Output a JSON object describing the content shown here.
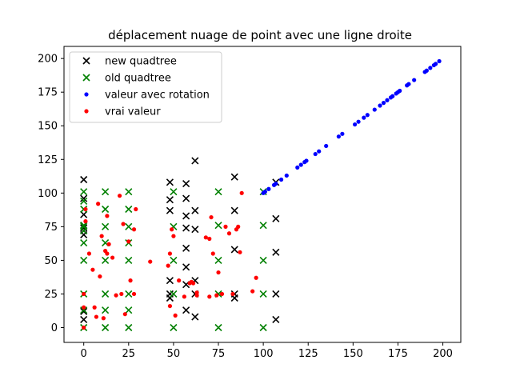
{
  "chart_data": {
    "type": "scatter",
    "title": "déplacement nuage de point avec une ligne droite",
    "xlabel": "",
    "ylabel": "",
    "xlim": [
      -11,
      210
    ],
    "ylim": [
      -11,
      209
    ],
    "x_ticks": [
      0,
      25,
      50,
      75,
      100,
      125,
      150,
      175,
      200
    ],
    "y_ticks": [
      0,
      25,
      50,
      75,
      100,
      125,
      150,
      175,
      200
    ],
    "grid": false,
    "legend_position": "top-left",
    "series": [
      {
        "name": "new quadtree",
        "marker": "x",
        "color": "#000000",
        "x": [
          0,
          0,
          0,
          0,
          0,
          0,
          0,
          0,
          0,
          48,
          48,
          48,
          48,
          48,
          48,
          57,
          57,
          57,
          57,
          57,
          57,
          57,
          57,
          62,
          62,
          62,
          62,
          62,
          62,
          84,
          84,
          84,
          84,
          84,
          107,
          107,
          107,
          107,
          107
        ],
        "y": [
          6,
          12,
          69,
          72,
          74,
          76,
          84,
          96,
          110,
          22,
          25,
          35,
          87,
          95,
          108,
          13,
          32,
          45,
          59,
          74,
          83,
          96,
          107,
          8,
          25,
          35,
          73,
          87,
          124,
          22,
          25,
          58,
          87,
          112,
          6,
          25,
          56,
          81,
          108
        ]
      },
      {
        "name": "old quadtree",
        "marker": "x",
        "color": "#008000",
        "x": [
          0,
          0,
          0,
          0,
          0,
          0,
          0,
          0,
          0,
          0,
          0,
          12,
          12,
          12,
          12,
          12,
          12,
          12,
          12,
          25,
          25,
          25,
          25,
          25,
          25,
          25,
          25,
          50,
          50,
          50,
          50,
          50,
          75,
          75,
          75,
          75,
          75,
          100,
          100,
          100,
          100,
          100
        ],
        "y": [
          0,
          13,
          25,
          50,
          63,
          72,
          75,
          76,
          88,
          94,
          101,
          0,
          13,
          25,
          50,
          63,
          75,
          88,
          101,
          0,
          13,
          25,
          50,
          63,
          75,
          88,
          101,
          0,
          25,
          50,
          75,
          101,
          0,
          25,
          50,
          76,
          101,
          0,
          25,
          50,
          76,
          101
        ]
      },
      {
        "name": "valeur avec rotation",
        "marker": "dot",
        "color": "#0000ff",
        "x": [
          100,
          101,
          103,
          106,
          107,
          110,
          113,
          119,
          121,
          123,
          124,
          129,
          131,
          135,
          142,
          144,
          151,
          153,
          156,
          158,
          162,
          165,
          167,
          169,
          171,
          172,
          174,
          175,
          176,
          180,
          181,
          184,
          190,
          191,
          193,
          195,
          196,
          198
        ],
        "y": [
          100,
          101,
          103,
          106,
          107,
          110,
          113,
          119,
          121,
          123,
          124,
          129,
          131,
          135,
          142,
          144,
          151,
          153,
          156,
          158,
          162,
          165,
          167,
          169,
          171,
          172,
          174,
          175,
          176,
          180,
          181,
          184,
          190,
          191,
          193,
          195,
          196,
          198
        ]
      },
      {
        "name": "vrai valeur",
        "marker": "dot",
        "color": "#ff0000",
        "x": [
          0,
          0,
          0,
          1,
          1,
          3,
          5,
          6,
          7,
          8,
          9,
          10,
          11,
          12,
          13,
          13,
          14,
          16,
          18,
          20,
          21,
          22,
          23,
          25,
          26,
          28,
          28,
          29,
          37,
          47,
          48,
          48,
          49,
          50,
          51,
          53,
          56,
          59,
          60,
          61,
          63,
          63,
          68,
          70,
          70,
          71,
          72,
          74,
          75,
          77,
          79,
          81,
          83,
          85,
          86,
          87,
          88,
          94,
          96
        ],
        "y": [
          0,
          15,
          25,
          88,
          79,
          55,
          43,
          15,
          8,
          92,
          38,
          68,
          7,
          57,
          55,
          83,
          62,
          52,
          24,
          98,
          25,
          77,
          10,
          64,
          35,
          25,
          73,
          88,
          49,
          46,
          16,
          55,
          73,
          68,
          9,
          35,
          23,
          33,
          34,
          33,
          26,
          24,
          67,
          23,
          66,
          82,
          55,
          24,
          41,
          25,
          75,
          70,
          25,
          73,
          75,
          56,
          100,
          27,
          37
        ]
      }
    ]
  }
}
